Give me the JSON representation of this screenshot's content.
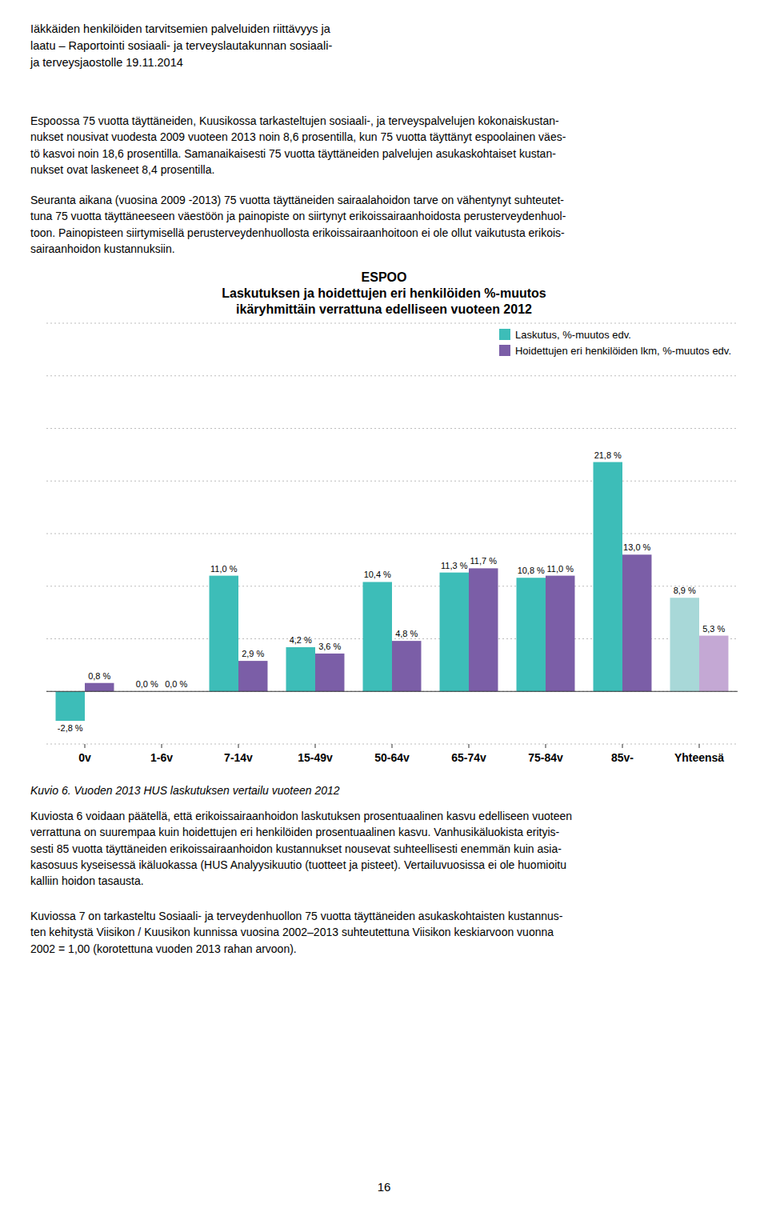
{
  "chart_data": {
    "type": "bar",
    "title": "ESPOO\nLaskutuksen ja hoidettujen eri henkilöiden %-muutos\nikäryhmittäin verrattuna edelliseen vuoteen 2012",
    "categories": [
      "0v",
      "1-6v",
      "7-14v",
      "15-49v",
      "50-64v",
      "65-74v",
      "75-84v",
      "85v-",
      "Yhteensä"
    ],
    "series": [
      {
        "name": "Laskutus, %-muutos edv.",
        "color": "#3DBDB8",
        "colors": [
          "#3DBDB8",
          "#3DBDB8",
          "#3DBDB8",
          "#3DBDB8",
          "#3DBDB8",
          "#3DBDB8",
          "#3DBDB8",
          "#3DBDB8",
          "#A8D8D8"
        ],
        "values": [
          -2.8,
          0.0,
          11.0,
          4.2,
          10.4,
          11.3,
          10.8,
          21.8,
          8.9
        ],
        "value_labels": [
          "-2,8 %",
          "0,0 %",
          "11,0 %",
          "4,2 %",
          "10,4 %",
          "11,3 %",
          "10,8 %",
          "21,8 %",
          "8,9 %"
        ]
      },
      {
        "name": "Hoidettujen eri henkilöiden lkm, %-muutos edv.",
        "color": "#7B5EA7",
        "colors": [
          "#7B5EA7",
          "#7B5EA7",
          "#7B5EA7",
          "#7B5EA7",
          "#7B5EA7",
          "#7B5EA7",
          "#7B5EA7",
          "#7B5EA7",
          "#C4A8D4"
        ],
        "values": [
          0.8,
          0.0,
          2.9,
          3.6,
          4.8,
          11.7,
          11.0,
          13.0,
          5.3
        ],
        "value_labels": [
          "0,8 %",
          "0,0 %",
          "2,9 %",
          "3,6 %",
          "4,8 %",
          "11,7 %",
          "11,0 %",
          "13,0 %",
          "5,3 %"
        ]
      }
    ],
    "ylim": [
      -5,
      35
    ],
    "yticks": [
      -5,
      0,
      5,
      10,
      15,
      20,
      25,
      30,
      35
    ],
    "grid": true,
    "legend": "upper right",
    "data_labels": true,
    "tick_labels": "x"
  },
  "page": {
    "header": [
      "Iäkkäiden henkilöiden tarvitsemien palveluiden riittävyys ja",
      "laatu – Raportointi sosiaali- ja terveyslautakunnan sosiaali-",
      "ja terveysjaostolle 19.11.2014"
    ],
    "paragraphs_top": [
      "Espoossa 75 vuotta täyttäneiden, Kuusikossa tarkasteltujen sosiaali-, ja terveyspalvelujen kokonaiskustan-\nnukset nousivat vuodesta 2009 vuoteen 2013 noin 8,6 prosentilla, kun 75 vuotta täyttänyt espoolainen väes-\ntö kasvoi noin 18,6 prosentilla. Samanaikaisesti 75 vuotta täyttäneiden palvelujen asukaskohtaiset kustan-\nnukset ovat laskeneet 8,4 prosentilla.",
      "Seuranta aikana (vuosina 2009 -2013) 75 vuotta täyttäneiden sairaalahoidon tarve on vähentynyt suhteutet-\ntuna 75 vuotta täyttäneeseen väestöön ja painopiste on siirtynyt erikoissairaanhoidosta perusterveydenhuol-\ntoon. Painopisteen siirtymisellä perusterveydenhuollosta erikoissairaanhoitoon ei ole ollut vaikutusta erikois-\nsairaanhoidon kustannuksiin."
    ],
    "caption": "Kuvio 6. Vuoden 2013 HUS laskutuksen vertailu vuoteen 2012",
    "paragraphs_bottom": [
      "Kuviosta 6 voidaan päätellä, että erikoissairaanhoidon laskutuksen prosentuaalinen kasvu edelliseen vuoteen\nverrattuna on suurempaa kuin hoidettujen eri henkilöiden prosentuaalinen kasvu. Vanhusikäluokista erityis-\nsesti 85 vuotta täyttäneiden erikoissairaanhoidon kustannukset nousevat suhteellisesti enemmän kuin asia-\nkasosuus kyseisessä ikäluokassa (HUS Analyysikuutio (tuotteet ja pisteet). Vertailuvuosissa ei ole huomioitu\nkalliin hoidon tasausta.",
      "Kuviossa 7 on tarkasteltu Sosiaali- ja terveydenhuollon 75 vuotta täyttäneiden asukaskohtaisten kustannus-\nten kehitystä Viisikon / Kuusikon kunnissa vuosina 2002–2013 suhteutettuna Viisikon keskiarvoon vuonna\n2002 = 1,00 (korotettuna vuoden 2013 rahan arvoon)."
    ],
    "page_number": "16"
  }
}
